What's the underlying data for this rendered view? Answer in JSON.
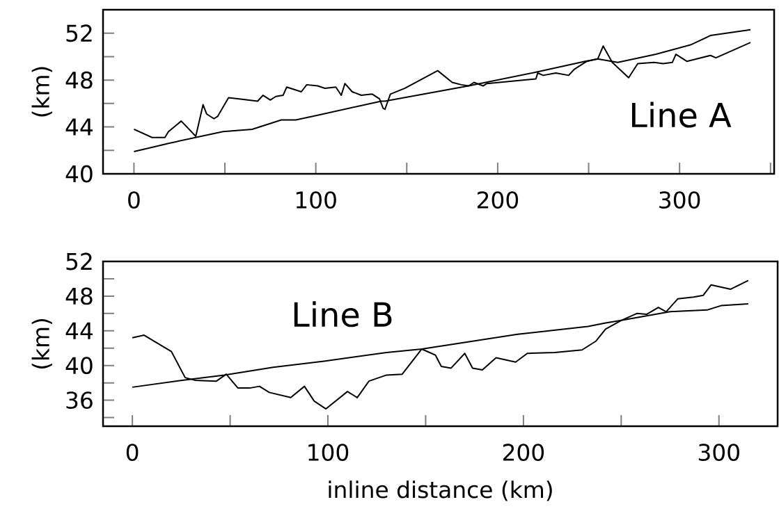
{
  "chart_data": [
    {
      "type": "line",
      "ylabel": "(km)",
      "annotations": [
        "Line A"
      ],
      "xlim": [
        -17,
        352
      ],
      "ylim": [
        40,
        54
      ],
      "xticks": [
        0,
        {
          "value": 50,
          "label": null
        },
        100,
        {
          "value": 150,
          "label": null
        },
        200,
        {
          "value": 250,
          "label": null
        },
        300,
        {
          "value": 350,
          "label": null
        }
      ],
      "yticks": [
        40,
        {
          "value": 42,
          "label": null
        },
        44,
        {
          "value": 46,
          "label": null
        },
        48,
        {
          "value": 50,
          "label": null
        },
        52
      ],
      "series": [
        {
          "color": "#000000",
          "x": [
            0,
            11,
            19,
            49,
            65,
            81,
            89,
            101,
            136,
            138,
            184,
            222,
            248,
            255,
            266,
            287,
            306,
            317,
            339
          ],
          "values": [
            41.9,
            42.3,
            42.6,
            43.6,
            43.8,
            44.6,
            44.6,
            45.0,
            46.2,
            46.2,
            47.5,
            48.7,
            49.6,
            49.8,
            49.5,
            50.2,
            51.0,
            51.8,
            52.3
          ]
        },
        {
          "color": "#000000",
          "x": [
            0,
            10,
            17,
            19,
            26,
            34,
            38,
            40,
            44,
            46,
            52,
            57,
            68,
            71,
            75,
            78,
            82,
            84,
            92,
            95,
            101,
            105,
            111,
            114,
            116,
            120,
            125,
            131,
            135,
            137,
            138,
            141,
            149,
            167,
            175,
            180,
            184,
            187,
            192,
            194,
            221,
            222,
            225,
            232,
            239,
            242,
            249,
            255,
            258,
            263,
            272,
            277,
            286,
            291,
            296,
            298,
            304,
            317,
            320,
            339
          ],
          "values": [
            43.8,
            43.1,
            43.1,
            43.6,
            44.5,
            43.2,
            45.9,
            45.1,
            44.7,
            44.9,
            46.5,
            46.4,
            46.2,
            46.7,
            46.3,
            46.6,
            46.7,
            47.4,
            47.0,
            47.6,
            47.5,
            47.3,
            47.4,
            46.7,
            47.7,
            47.0,
            46.7,
            46.8,
            46.4,
            45.6,
            45.5,
            46.8,
            47.3,
            48.8,
            47.8,
            47.6,
            47.5,
            47.8,
            47.5,
            47.7,
            48.1,
            48.6,
            48.4,
            48.6,
            48.4,
            48.9,
            49.6,
            49.8,
            50.9,
            49.5,
            48.2,
            49.4,
            49.5,
            49.4,
            49.5,
            50.2,
            49.6,
            50.1,
            49.9,
            51.2
          ]
        }
      ]
    },
    {
      "type": "line",
      "ylabel": "(km)",
      "xlabel": "inline distance (km)",
      "annotations": [
        "Line B"
      ],
      "xlim": [
        -15,
        330
      ],
      "ylim": [
        33,
        52
      ],
      "xticks": [
        0,
        {
          "value": 50,
          "label": null
        },
        100,
        {
          "value": 150,
          "label": null
        },
        200,
        {
          "value": 250,
          "label": null
        },
        300
      ],
      "yticks": [
        {
          "value": 34,
          "label": null
        },
        36,
        {
          "value": 38,
          "label": null
        },
        40,
        {
          "value": 42,
          "label": null
        },
        44,
        {
          "value": 46,
          "label": null
        },
        48,
        {
          "value": 50,
          "label": null
        },
        52
      ],
      "series": [
        {
          "color": "#000000",
          "x": [
            0,
            29,
            47,
            72,
            98,
            130,
            148,
            197,
            233,
            242,
            250,
            275,
            294,
            301,
            315
          ],
          "values": [
            37.5,
            38.4,
            38.9,
            39.8,
            40.5,
            41.5,
            41.9,
            43.6,
            44.5,
            44.9,
            45.2,
            46.2,
            46.4,
            46.9,
            47.1
          ]
        },
        {
          "color": "#000000",
          "x": [
            0,
            6,
            20,
            27,
            32,
            43,
            48,
            54,
            60,
            65,
            70,
            81,
            88,
            93,
            99,
            110,
            115,
            121,
            130,
            138,
            148,
            155,
            158,
            163,
            170,
            174,
            179,
            186,
            196,
            202,
            216,
            230,
            237,
            242,
            250,
            258,
            263,
            269,
            273,
            279,
            287,
            292,
            296,
            306,
            315
          ],
          "values": [
            43.2,
            43.5,
            41.6,
            38.6,
            38.3,
            38.2,
            39.0,
            37.4,
            37.4,
            37.6,
            36.9,
            36.3,
            37.6,
            35.9,
            35.0,
            37.0,
            36.3,
            38.2,
            38.9,
            39.0,
            41.9,
            41.2,
            39.9,
            39.7,
            41.4,
            39.7,
            39.5,
            40.9,
            40.4,
            41.4,
            41.5,
            41.8,
            42.8,
            44.2,
            45.2,
            46.0,
            45.9,
            46.7,
            46.2,
            47.7,
            47.9,
            48.1,
            49.3,
            48.8,
            49.8
          ]
        }
      ]
    }
  ]
}
